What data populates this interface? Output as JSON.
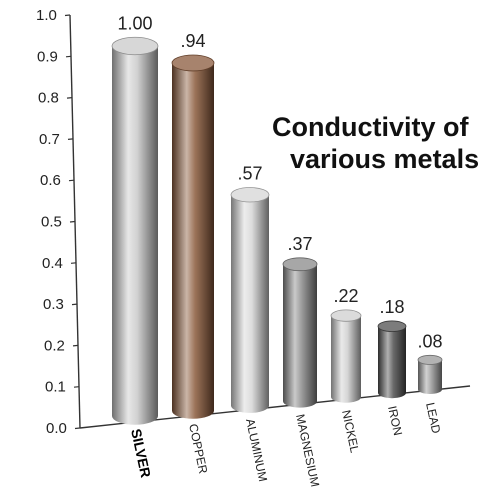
{
  "chart_data": {
    "type": "bar",
    "title_lines": [
      "Conductivity of",
      "various metals"
    ],
    "categories": [
      "SILVER",
      "COPPER",
      "ALUMINUM",
      "MAGNESIUM",
      "NICKEL",
      "IRON",
      "LEAD"
    ],
    "values": [
      1.0,
      0.94,
      0.57,
      0.37,
      0.22,
      0.18,
      0.08
    ],
    "value_labels": [
      "1.00",
      ".94",
      ".57",
      ".37",
      ".22",
      ".18",
      ".08"
    ],
    "y_ticks": [
      "0.0",
      "0.1",
      "0.2",
      "0.3",
      "0.4",
      "0.5",
      "0.6",
      "0.7",
      "0.8",
      "0.9",
      "1.0"
    ],
    "ylim": [
      0,
      1.0
    ],
    "highlight_category": "SILVER",
    "bar_colors": [
      "#c9c9c9",
      "#8a5a3c",
      "#d6d6d6",
      "#8a8a8a",
      "#cfcfcf",
      "#505050",
      "#9a9a9a"
    ],
    "grid": false,
    "legend": "none"
  }
}
